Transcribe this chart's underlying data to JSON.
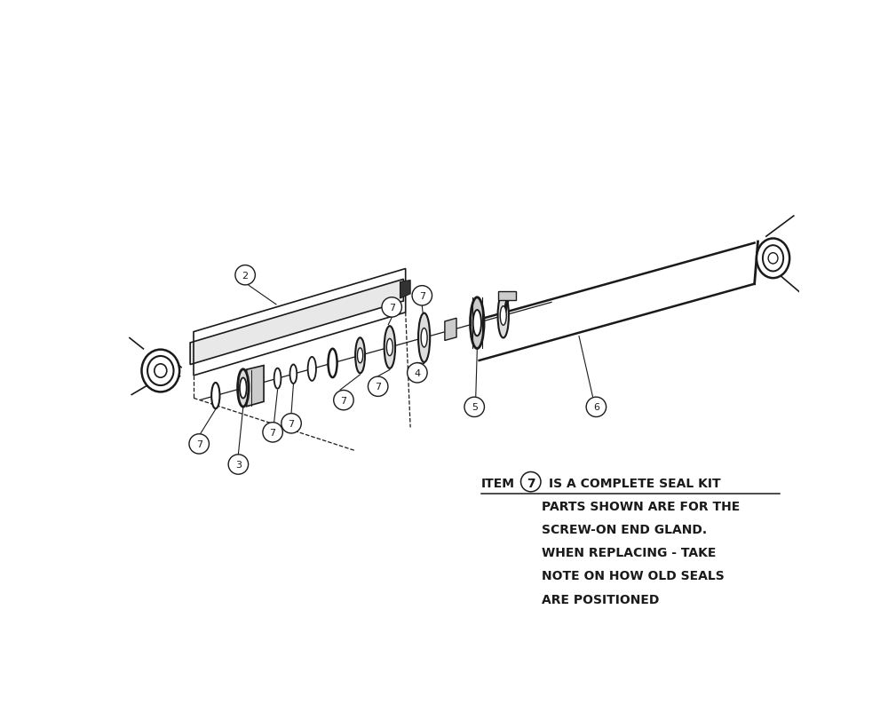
{
  "bg_color": "#ffffff",
  "line_color": "#1a1a1a",
  "text_color": "#1a1a1a",
  "note_line2": "PARTS SHOWN ARE FOR THE",
  "note_line3": "SCREW-ON END GLAND.",
  "note_line4": "WHEN REPLACING - TAKE",
  "note_line5": "NOTE ON HOW OLD SEALS",
  "note_line6": "ARE POSITIONED",
  "label_2": "2",
  "label_3": "3",
  "label_4": "4",
  "label_5": "5",
  "label_6": "6",
  "label_7": "7",
  "figsize": [
    10.0,
    8.12
  ],
  "dpi": 100
}
